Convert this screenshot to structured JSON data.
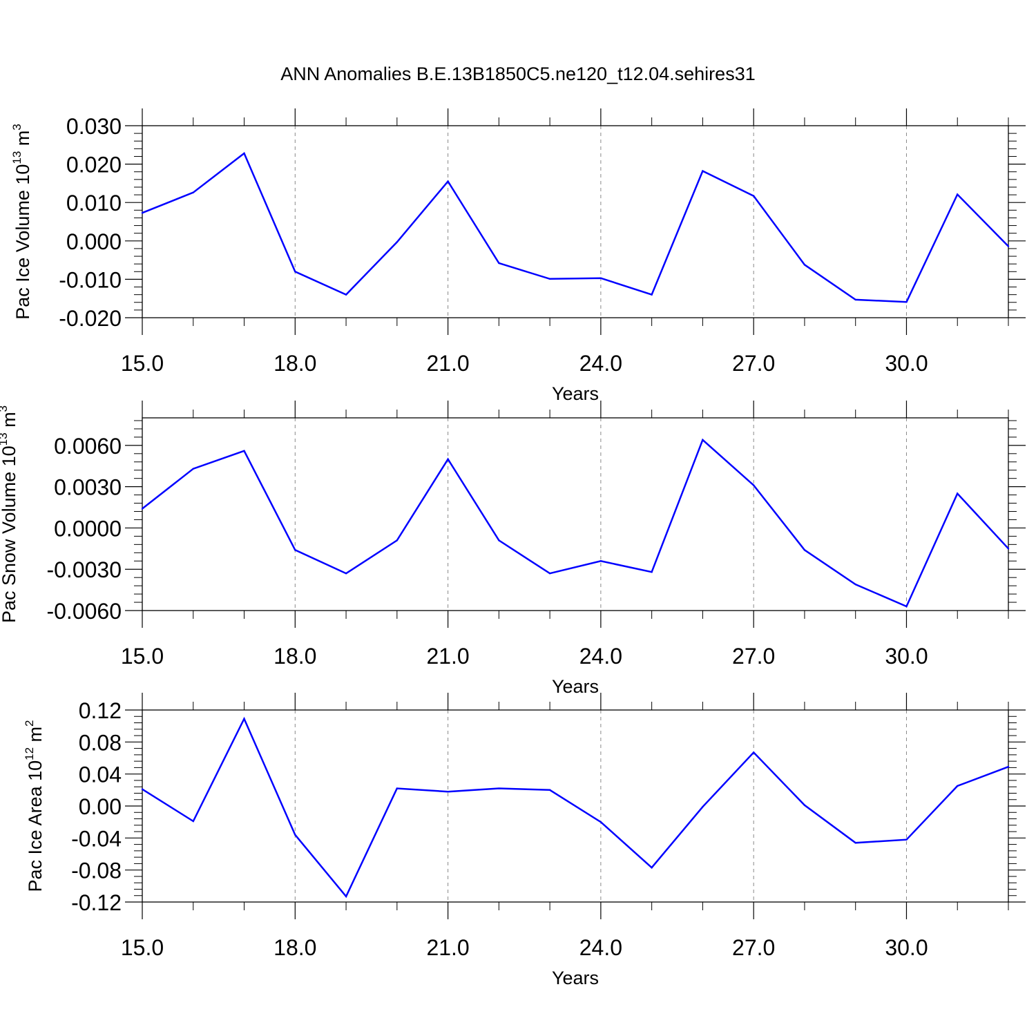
{
  "title": "ANN Anomalies B.E.13B1850C5.ne120_t12.04.sehires31",
  "line_color": "#0000ff",
  "chart_data": [
    {
      "type": "line",
      "xlabel": "Years",
      "ylabel": {
        "text": "Pac Ice Volume 10",
        "exp": "13",
        "unit": " m",
        "unit_exp": "3"
      },
      "xlim": [
        15,
        32
      ],
      "ylim": [
        -0.02,
        0.03
      ],
      "xticks": [
        15,
        18,
        21,
        24,
        27,
        30
      ],
      "xtick_labels": [
        "15.0",
        "18.0",
        "21.0",
        "24.0",
        "27.0",
        "30.0"
      ],
      "yticks": [
        -0.02,
        -0.01,
        0.0,
        0.01,
        0.02,
        0.03
      ],
      "ytick_labels": [
        "-0.020",
        "-0.010",
        "0.000",
        "0.010",
        "0.020",
        "0.030"
      ],
      "grid": "vertical dashed",
      "x": [
        15,
        16,
        17,
        18,
        19,
        20,
        21,
        22,
        23,
        24,
        25,
        26,
        27,
        28,
        29,
        30,
        31,
        32
      ],
      "values": [
        0.0073,
        0.0126,
        0.0228,
        -0.008,
        -0.014,
        -0.0003,
        0.0155,
        -0.0058,
        -0.0099,
        -0.0097,
        -0.014,
        0.0182,
        0.0117,
        -0.0062,
        -0.0153,
        -0.0159,
        0.0121,
        -0.0014
      ]
    },
    {
      "type": "line",
      "xlabel": "Years",
      "ylabel": {
        "text": "Pac Snow Volume 10",
        "exp": "13",
        "unit": " m",
        "unit_exp": "3"
      },
      "xlim": [
        15,
        32
      ],
      "ylim": [
        -0.006,
        0.008
      ],
      "xticks": [
        15,
        18,
        21,
        24,
        27,
        30
      ],
      "xtick_labels": [
        "15.0",
        "18.0",
        "21.0",
        "24.0",
        "27.0",
        "30.0"
      ],
      "yticks": [
        -0.006,
        -0.003,
        0.0,
        0.003,
        0.006
      ],
      "ytick_labels": [
        "-0.0060",
        "-0.0030",
        "0.0000",
        "0.0030",
        "0.0060"
      ],
      "grid": "vertical dashed",
      "x": [
        15,
        16,
        17,
        18,
        19,
        20,
        21,
        22,
        23,
        24,
        25,
        26,
        27,
        28,
        29,
        30,
        31,
        32
      ],
      "values": [
        0.0014,
        0.0043,
        0.0056,
        -0.0016,
        -0.0033,
        -0.0009,
        0.005,
        -0.0009,
        -0.0033,
        -0.0024,
        -0.0032,
        0.0064,
        0.0031,
        -0.0016,
        -0.0041,
        -0.0057,
        0.0025,
        -0.0015
      ]
    },
    {
      "type": "line",
      "xlabel": "Years",
      "ylabel": {
        "text": "Pac Ice Area 10",
        "exp": "12",
        "unit": " m",
        "unit_exp": "2"
      },
      "xlim": [
        15,
        32
      ],
      "ylim": [
        -0.12,
        0.12
      ],
      "xticks": [
        15,
        18,
        21,
        24,
        27,
        30
      ],
      "xtick_labels": [
        "15.0",
        "18.0",
        "21.0",
        "24.0",
        "27.0",
        "30.0"
      ],
      "yticks": [
        -0.12,
        -0.08,
        -0.04,
        0.0,
        0.04,
        0.08,
        0.12
      ],
      "ytick_labels": [
        "-0.12",
        "-0.08",
        "-0.04",
        "0.00",
        "0.04",
        "0.08",
        "0.12"
      ],
      "grid": "vertical dashed",
      "x": [
        15,
        16,
        17,
        18,
        19,
        20,
        21,
        22,
        23,
        24,
        25,
        26,
        27,
        28,
        29,
        30,
        31,
        32
      ],
      "values": [
        0.021,
        -0.019,
        0.109,
        -0.036,
        -0.113,
        0.022,
        0.018,
        0.022,
        0.02,
        -0.02,
        -0.077,
        -0.001,
        0.067,
        0.001,
        -0.046,
        -0.042,
        0.025,
        0.049
      ]
    }
  ]
}
